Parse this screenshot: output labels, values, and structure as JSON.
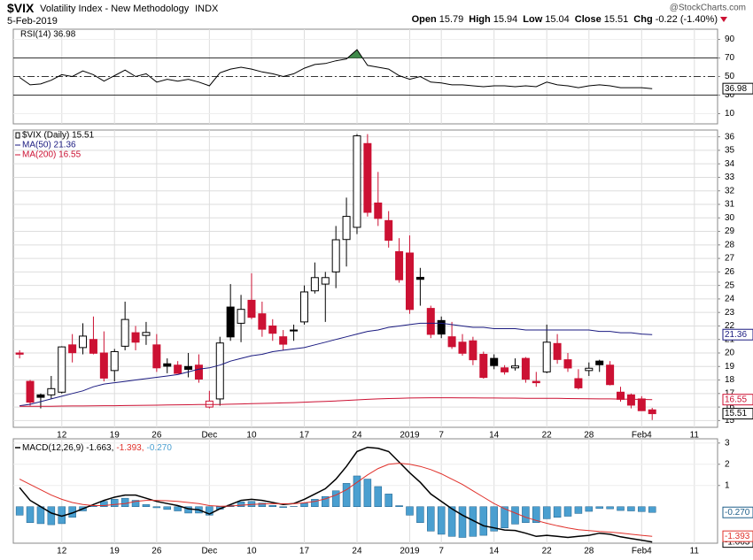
{
  "header": {
    "symbol": "$VIX",
    "name": "Volatility Index - New Methodology",
    "exchange": "INDX",
    "date": "5-Feb-2019",
    "brand": "@StockCharts.com",
    "quote": [
      {
        "label": "Open",
        "value": "15.79"
      },
      {
        "label": "High",
        "value": "15.94"
      },
      {
        "label": "Low",
        "value": "15.04"
      },
      {
        "label": "Close",
        "value": "15.51"
      },
      {
        "label": "Chg",
        "value": "-0.22 (-1.40%)"
      }
    ]
  },
  "chart_data": [
    {
      "type": "line",
      "xlim": [
        -0.6,
        66.2
      ],
      "ylim": [
        -1,
        101
      ],
      "yticks": [
        10,
        30,
        50,
        70,
        90
      ],
      "levels": [
        {
          "value": 70,
          "style": "solid"
        },
        {
          "value": 50,
          "style": "dashdot"
        },
        {
          "value": 30,
          "style": "solid"
        }
      ],
      "overbought_color": "#3f8a4a",
      "series": [
        {
          "name": "RSI(14) 36.98",
          "color": "#000000",
          "value_tag": "36.98",
          "values": [
            49,
            41,
            42,
            46,
            52,
            50,
            56,
            52,
            45,
            51,
            57,
            50,
            53,
            44,
            47,
            45,
            47,
            44,
            40,
            54,
            58,
            60,
            58,
            55,
            53,
            50,
            53,
            59,
            63,
            64,
            67,
            69,
            79,
            62,
            60,
            58,
            51,
            47,
            50,
            44,
            43,
            41,
            41,
            40,
            39,
            40,
            40,
            39,
            40,
            39,
            44,
            41,
            40,
            38,
            40,
            41,
            40,
            38,
            38,
            38,
            36.98
          ]
        }
      ]
    },
    {
      "type": "candlestick",
      "xlim": [
        -0.6,
        66.2
      ],
      "ylim": [
        14.5,
        36.5
      ],
      "yticks": [
        15,
        16,
        17,
        18,
        19,
        20,
        21,
        22,
        23,
        24,
        25,
        26,
        27,
        28,
        29,
        30,
        31,
        32,
        33,
        34,
        35,
        36
      ],
      "grid": true,
      "xticks": [
        {
          "value": 4,
          "label": "12"
        },
        {
          "value": 9,
          "label": "19"
        },
        {
          "value": 13,
          "label": "26"
        },
        {
          "value": 18,
          "label": "Dec"
        },
        {
          "value": 22,
          "label": "10"
        },
        {
          "value": 27,
          "label": "17"
        },
        {
          "value": 32,
          "label": "24"
        },
        {
          "value": 37,
          "label": "2019"
        },
        {
          "value": 40,
          "label": "7"
        },
        {
          "value": 45,
          "label": "14"
        },
        {
          "value": 50,
          "label": "22"
        },
        {
          "value": 54,
          "label": "28"
        },
        {
          "value": 59,
          "label": "Feb4"
        },
        {
          "value": 64,
          "label": "11"
        }
      ],
      "name": "$VIX (Daily) 15.51",
      "close_tag": "15.51",
      "up_color": "#000000",
      "down_color": "#cc1133",
      "open": [
        20.0,
        17.9,
        16.9,
        16.9,
        17.1,
        20.6,
        20.4,
        21.0,
        20.0,
        18.7,
        20.5,
        21.5,
        21.3,
        20.6,
        19.2,
        19.1,
        19.0,
        19.1,
        16.0,
        16.6,
        23.4,
        22.2,
        23.9,
        22.9,
        22.0,
        21.2,
        21.7,
        22.3,
        24.6,
        25.1,
        26.0,
        28.4,
        29.3,
        35.5,
        31.1,
        29.8,
        27.5,
        27.4,
        25.6,
        23.3,
        22.4,
        21.2,
        20.8,
        20.9,
        19.9,
        19.6,
        18.9,
        18.9,
        19.6,
        17.9,
        18.6,
        20.7,
        19.5,
        18.1,
        18.7,
        19.4,
        19.1,
        17.1,
        16.9,
        16.6,
        15.79
      ],
      "high": [
        20.2,
        18.0,
        17.0,
        18.3,
        20.5,
        21.4,
        22.2,
        22.7,
        21.6,
        20.3,
        23.8,
        22.0,
        22.3,
        21.4,
        19.6,
        19.4,
        20.0,
        19.9,
        17.2,
        21.2,
        25.1,
        24.3,
        25.9,
        23.8,
        22.5,
        21.7,
        22.1,
        25.0,
        26.7,
        26.0,
        29.4,
        31.5,
        36.2,
        36.2,
        33.4,
        30.5,
        28.5,
        28.7,
        26.3,
        23.5,
        22.7,
        22.3,
        21.4,
        21.2,
        20.1,
        19.9,
        19.1,
        19.6,
        19.7,
        18.6,
        22.1,
        21.4,
        20.0,
        18.8,
        19.3,
        19.5,
        19.4,
        17.5,
        17.0,
        16.8,
        15.94
      ],
      "low": [
        19.6,
        16.1,
        15.9,
        16.6,
        17.0,
        19.3,
        19.9,
        19.9,
        17.9,
        17.9,
        20.2,
        20.2,
        20.6,
        18.6,
        18.5,
        18.5,
        18.2,
        17.8,
        15.9,
        16.1,
        20.9,
        20.8,
        22.5,
        21.2,
        20.9,
        20.2,
        20.9,
        22.1,
        24.4,
        22.3,
        24.8,
        26.4,
        28.8,
        30.1,
        29.4,
        27.8,
        25.2,
        22.9,
        23.5,
        21.1,
        21.1,
        20.3,
        19.8,
        19.1,
        18.1,
        18.8,
        18.4,
        18.7,
        17.8,
        17.5,
        18.5,
        19.2,
        18.6,
        17.3,
        18.3,
        18.6,
        17.6,
        16.4,
        15.9,
        15.8,
        15.04
      ],
      "close": [
        19.91,
        16.36,
        16.72,
        17.36,
        20.45,
        20.02,
        21.25,
        19.98,
        18.14,
        20.1,
        22.48,
        20.8,
        21.52,
        18.9,
        19.02,
        18.49,
        18.79,
        18.07,
        16.44,
        20.74,
        21.19,
        23.23,
        22.64,
        21.76,
        21.46,
        20.65,
        21.63,
        24.52,
        25.58,
        25.58,
        28.38,
        30.11,
        36.07,
        30.41,
        29.96,
        28.34,
        25.42,
        23.22,
        25.45,
        21.38,
        21.4,
        20.47,
        19.98,
        19.5,
        18.19,
        19.07,
        18.6,
        19.04,
        18.06,
        17.8,
        20.8,
        19.52,
        18.89,
        17.42,
        18.87,
        19.13,
        17.66,
        16.57,
        16.14,
        15.73,
        15.51
      ],
      "series": [
        {
          "name": "MA(50) 21.36",
          "color": "#1a1a80",
          "value_tag": "21.36",
          "values": [
            16.1,
            16.2,
            16.4,
            16.6,
            16.8,
            17.0,
            17.2,
            17.5,
            17.7,
            17.8,
            17.9,
            18.0,
            18.1,
            18.2,
            18.3,
            18.4,
            18.6,
            18.8,
            18.9,
            19.1,
            19.4,
            19.6,
            19.8,
            19.9,
            20.1,
            20.2,
            20.3,
            20.4,
            20.6,
            20.8,
            21.0,
            21.2,
            21.4,
            21.6,
            21.7,
            21.9,
            22.0,
            22.1,
            22.2,
            22.2,
            22.2,
            22.1,
            22.0,
            21.9,
            21.9,
            21.8,
            21.8,
            21.8,
            21.7,
            21.7,
            21.7,
            21.7,
            21.7,
            21.7,
            21.7,
            21.6,
            21.6,
            21.5,
            21.5,
            21.4,
            21.36
          ]
        },
        {
          "name": "MA(200) 16.55",
          "color": "#cc1133",
          "value_tag": "16.55",
          "values": [
            16.05,
            16.05,
            16.06,
            16.06,
            16.07,
            16.08,
            16.08,
            16.09,
            16.1,
            16.1,
            16.11,
            16.12,
            16.13,
            16.14,
            16.15,
            16.16,
            16.17,
            16.18,
            16.18,
            16.19,
            16.21,
            16.23,
            16.25,
            16.27,
            16.29,
            16.31,
            16.33,
            16.36,
            16.39,
            16.42,
            16.45,
            16.49,
            16.53,
            16.57,
            16.6,
            16.63,
            16.65,
            16.67,
            16.68,
            16.69,
            16.69,
            16.69,
            16.68,
            16.68,
            16.67,
            16.67,
            16.66,
            16.66,
            16.65,
            16.65,
            16.64,
            16.64,
            16.63,
            16.62,
            16.61,
            16.6,
            16.6,
            16.59,
            16.58,
            16.56,
            16.55
          ]
        }
      ]
    },
    {
      "type": "macd",
      "xlim": [
        -0.6,
        66.2
      ],
      "ylim": [
        -1.72,
        3.2
      ],
      "yticks": [
        1,
        2,
        3
      ],
      "xticks": [
        {
          "value": 4,
          "label": "12"
        },
        {
          "value": 9,
          "label": "19"
        },
        {
          "value": 13,
          "label": "26"
        },
        {
          "value": 18,
          "label": "Dec"
        },
        {
          "value": 22,
          "label": "10"
        },
        {
          "value": 27,
          "label": "17"
        },
        {
          "value": 32,
          "label": "24"
        },
        {
          "value": 37,
          "label": "2019"
        },
        {
          "value": 40,
          "label": "7"
        },
        {
          "value": 45,
          "label": "14"
        },
        {
          "value": 50,
          "label": "22"
        },
        {
          "value": 54,
          "label": "28"
        },
        {
          "value": 59,
          "label": "Feb4"
        },
        {
          "value": 64,
          "label": "11"
        }
      ],
      "series": [
        {
          "name": "MACD(12,26,9) -1.663,",
          "color": "#000000",
          "value_tag": "-1.663",
          "values": [
            0.9,
            0.3,
            0,
            -0.3,
            -0.45,
            -0.3,
            -0.1,
            0.1,
            0.3,
            0.45,
            0.55,
            0.55,
            0.4,
            0.25,
            0.15,
            0.05,
            -0.1,
            -0.15,
            -0.35,
            -0.1,
            0.1,
            0.3,
            0.35,
            0.3,
            0.2,
            0.1,
            0.15,
            0.35,
            0.6,
            0.85,
            1.3,
            1.9,
            2.6,
            2.8,
            2.75,
            2.6,
            2.1,
            1.6,
            1.15,
            0.6,
            0.25,
            -0.1,
            -0.4,
            -0.65,
            -0.9,
            -1.0,
            -1.1,
            -1.12,
            -1.25,
            -1.4,
            -1.35,
            -1.4,
            -1.45,
            -1.4,
            -1.35,
            -1.25,
            -1.3,
            -1.42,
            -1.5,
            -1.58,
            -1.663
          ]
        },
        {
          "name": "-1.393,",
          "color": "#e0302a",
          "value_tag": "-1.393",
          "values": [
            1.3,
            1.05,
            0.8,
            0.55,
            0.35,
            0.2,
            0.1,
            0.05,
            0.05,
            0.1,
            0.15,
            0.25,
            0.3,
            0.3,
            0.28,
            0.25,
            0.2,
            0.15,
            0.05,
            0.02,
            0.03,
            0.07,
            0.1,
            0.13,
            0.14,
            0.14,
            0.14,
            0.18,
            0.25,
            0.37,
            0.55,
            0.8,
            1.15,
            1.5,
            1.8,
            2.0,
            2.05,
            2.0,
            1.9,
            1.75,
            1.55,
            1.3,
            1.05,
            0.75,
            0.45,
            0.15,
            -0.1,
            -0.3,
            -0.5,
            -0.65,
            -0.78,
            -0.9,
            -1.0,
            -1.08,
            -1.13,
            -1.17,
            -1.2,
            -1.24,
            -1.3,
            -1.35,
            -1.393
          ]
        },
        {
          "name": "-0.270",
          "color": "#4a9fd0",
          "value_tag": "-0.270",
          "bars": true,
          "values": [
            -0.4,
            -0.75,
            -0.8,
            -0.85,
            -0.8,
            -0.5,
            -0.2,
            0.05,
            0.25,
            0.35,
            0.4,
            0.3,
            0.1,
            -0.05,
            -0.13,
            -0.2,
            -0.3,
            -0.3,
            -0.4,
            -0.12,
            0.07,
            0.23,
            0.25,
            0.17,
            0.06,
            -0.04,
            0.01,
            0.17,
            0.35,
            0.48,
            0.75,
            1.1,
            1.45,
            1.3,
            0.95,
            0.6,
            0.05,
            -0.4,
            -0.75,
            -1.15,
            -1.3,
            -1.4,
            -1.45,
            -1.4,
            -1.35,
            -1.15,
            -1.0,
            -0.82,
            -0.75,
            -0.75,
            -0.57,
            -0.5,
            -0.45,
            -0.32,
            -0.22,
            -0.08,
            -0.1,
            -0.18,
            -0.2,
            -0.23,
            -0.27
          ]
        }
      ]
    }
  ]
}
